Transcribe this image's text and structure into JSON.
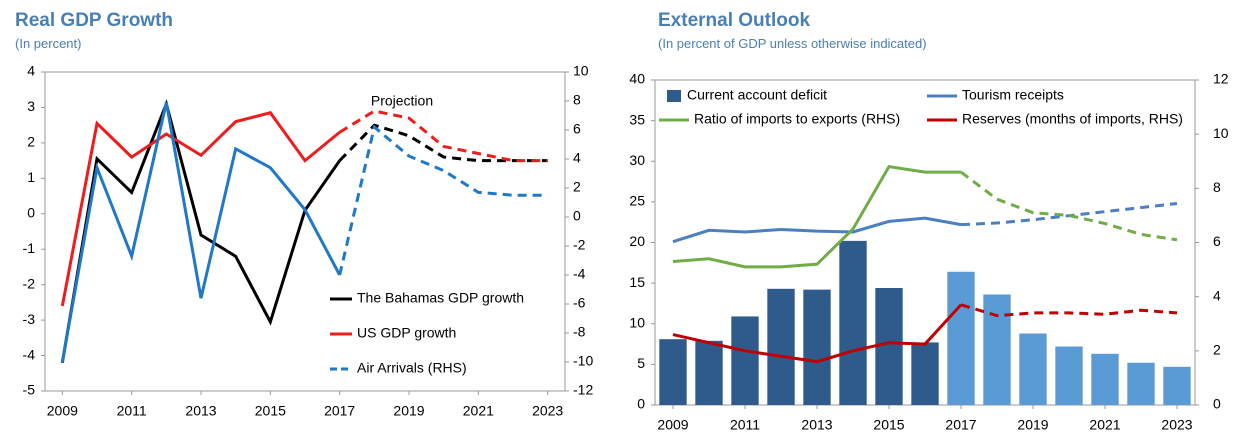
{
  "chart_data": [
    {
      "type": "line",
      "title": "Real GDP Growth",
      "subtitle": "(In percent)",
      "annotation": "Projection",
      "x": [
        2009,
        2010,
        2011,
        2012,
        2013,
        2014,
        2015,
        2016,
        2017,
        2018,
        2019,
        2020,
        2021,
        2022,
        2023
      ],
      "xlim": [
        2008.5,
        2023.5
      ],
      "xticks": [
        2009,
        2011,
        2013,
        2015,
        2017,
        2019,
        2021,
        2023
      ],
      "ylim": [
        -5,
        4
      ],
      "yticks": [
        -5,
        -4,
        -3,
        -2,
        -1,
        0,
        1,
        2,
        3,
        4
      ],
      "y2lim": [
        -12,
        10
      ],
      "y2ticks": [
        -12,
        -10,
        -8,
        -6,
        -4,
        -2,
        0,
        2,
        4,
        6,
        8,
        10
      ],
      "projection_from": 2017,
      "legend": "lower right",
      "series": [
        {
          "name": "The Bahamas GDP growth",
          "color": "#000000",
          "values": [
            -4.2,
            1.55,
            0.6,
            3.1,
            -0.6,
            -1.2,
            -3.05,
            0.1,
            1.5,
            2.5,
            2.2,
            1.6,
            1.5,
            1.5,
            1.5
          ]
        },
        {
          "name": "US GDP growth",
          "color": "#ee1c1c",
          "values": [
            -2.6,
            2.55,
            1.6,
            2.25,
            1.65,
            2.6,
            2.85,
            1.5,
            2.3,
            2.9,
            2.7,
            1.9,
            1.7,
            1.5,
            1.5
          ]
        },
        {
          "name": "Air Arrivals (RHS)",
          "color": "#1f78c8",
          "axis": "y2",
          "values": [
            -10,
            3.4,
            -2.7,
            7.9,
            -5.6,
            4.7,
            3.4,
            0.5,
            -4,
            6.2,
            4.2,
            3.2,
            1.7,
            1.5,
            1.5
          ]
        }
      ]
    },
    {
      "type": "bar",
      "title": "External Outlook",
      "subtitle": "(In percent of GDP unless otherwise indicated)",
      "x": [
        2009,
        2010,
        2011,
        2012,
        2013,
        2014,
        2015,
        2016,
        2017,
        2018,
        2019,
        2020,
        2021,
        2022,
        2023
      ],
      "xlim": [
        2008.5,
        2023.5
      ],
      "xticks": [
        2009,
        2011,
        2013,
        2015,
        2017,
        2019,
        2021,
        2023
      ],
      "ylim": [
        0,
        40
      ],
      "yticks": [
        0,
        5,
        10,
        15,
        20,
        25,
        30,
        35,
        40
      ],
      "y2lim": [
        0,
        12
      ],
      "y2ticks": [
        0,
        2,
        4,
        6,
        8,
        10,
        12
      ],
      "projection_from": 2017,
      "legend": "upper",
      "series": [
        {
          "name": "Current account deficit",
          "type": "bar",
          "color": "#2e5b8c",
          "projection_color": "#5b9bd5",
          "values": [
            8.1,
            7.9,
            10.9,
            14.3,
            14.2,
            20.2,
            14.4,
            7.7,
            16.4,
            13.6,
            8.8,
            7.2,
            6.3,
            5.2,
            4.7
          ]
        },
        {
          "name": "Tourism receipts",
          "type": "line",
          "color": "#4a7fc1",
          "values": [
            20.1,
            21.5,
            21.3,
            21.6,
            21.4,
            21.3,
            22.6,
            23.0,
            22.2,
            22.4,
            22.8,
            23.3,
            23.8,
            24.3,
            24.8
          ]
        },
        {
          "name": "Ratio of imports to exports (RHS)",
          "type": "line",
          "axis": "y2",
          "color": "#70ad47",
          "values": [
            5.3,
            5.4,
            5.1,
            5.1,
            5.2,
            6.5,
            8.8,
            8.6,
            8.6,
            7.6,
            7.1,
            7.0,
            6.7,
            6.3,
            6.1
          ]
        },
        {
          "name": "Reserves (months of imports, RHS)",
          "type": "line",
          "axis": "y2",
          "color": "#c00000",
          "values": [
            2.6,
            2.3,
            2.0,
            1.8,
            1.6,
            2.0,
            2.3,
            2.25,
            3.7,
            3.3,
            3.4,
            3.4,
            3.35,
            3.5,
            3.4
          ]
        }
      ]
    }
  ]
}
